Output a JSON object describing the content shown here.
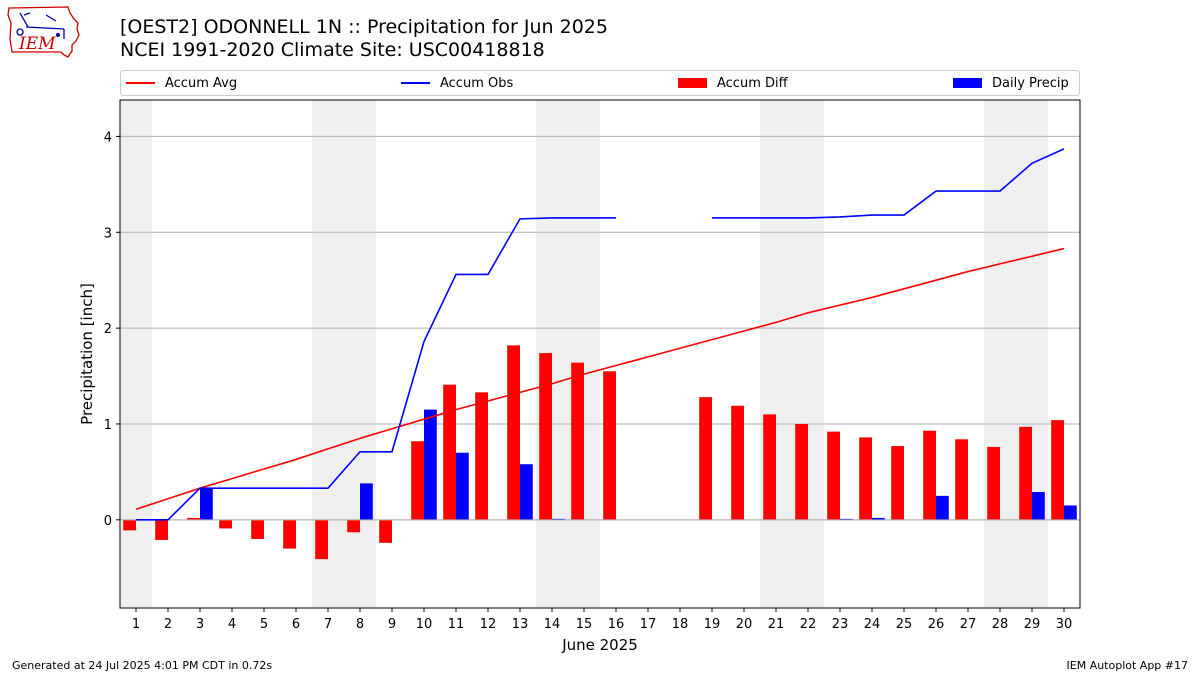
{
  "header": {
    "title_line1": "[OEST2] ODONNELL 1N :: Precipitation for Jun 2025",
    "title_line2": "NCEI 1991-2020 Climate Site: USC00418818"
  },
  "logo": {
    "text": "IEM"
  },
  "footer": {
    "generated": "Generated at 24 Jul 2025 4:01 PM CDT in 0.72s",
    "app": "IEM Autoplot App #17"
  },
  "colors": {
    "avg": "#ff0000",
    "obs": "#0000ff",
    "diff": "#ff0000",
    "daily": "#0000ff",
    "weekend": "#efefef",
    "grid": "#b0b0b0"
  },
  "chart_data": {
    "type": "bar",
    "xlabel": "June 2025",
    "ylabel": "Precipitation [inch]",
    "xlim": [
      0.5,
      30.5
    ],
    "ylim": [
      -0.92,
      4.38
    ],
    "yticks": [
      0,
      1,
      2,
      3,
      4
    ],
    "grid": true,
    "legend_placement": "top",
    "legend": {
      "avg": "Accum Avg",
      "obs": "Accum Obs",
      "diff": "Accum Diff",
      "daily": "Daily Precip"
    },
    "days": [
      1,
      2,
      3,
      4,
      5,
      6,
      7,
      8,
      9,
      10,
      11,
      12,
      13,
      14,
      15,
      16,
      17,
      18,
      19,
      20,
      21,
      22,
      23,
      24,
      25,
      26,
      27,
      28,
      29,
      30
    ],
    "weekend_days": [
      1,
      7,
      8,
      14,
      15,
      21,
      22,
      28,
      29
    ],
    "accum_avg": [
      0.11,
      0.22,
      0.33,
      0.43,
      0.53,
      0.63,
      0.74,
      0.85,
      0.95,
      1.05,
      1.15,
      1.24,
      1.33,
      1.42,
      1.52,
      1.61,
      1.7,
      1.79,
      1.88,
      1.97,
      2.06,
      2.16,
      2.24,
      2.32,
      2.41,
      2.5,
      2.59,
      2.67,
      2.75,
      2.83
    ],
    "accum_obs": [
      0.0,
      0.0,
      0.33,
      0.33,
      0.33,
      0.33,
      0.33,
      0.71,
      0.71,
      1.86,
      2.56,
      2.56,
      3.14,
      3.15,
      3.15,
      3.15,
      null,
      null,
      3.15,
      3.15,
      3.15,
      3.15,
      3.16,
      3.18,
      3.18,
      3.43,
      3.43,
      3.43,
      3.72,
      3.87
    ],
    "accum_diff": [
      -0.11,
      -0.21,
      0.02,
      -0.09,
      -0.2,
      -0.3,
      -0.41,
      -0.13,
      -0.24,
      0.82,
      1.41,
      1.33,
      1.82,
      1.74,
      1.64,
      1.55,
      null,
      null,
      1.28,
      1.19,
      1.1,
      1.0,
      0.92,
      0.86,
      0.77,
      0.93,
      0.84,
      0.76,
      0.97,
      1.04
    ],
    "daily_precip": [
      0.0,
      0.0,
      0.33,
      0.0,
      0.0,
      0.0,
      0.0,
      0.38,
      0.0,
      1.15,
      0.7,
      0.0,
      0.58,
      0.01,
      0.0,
      0.0,
      null,
      null,
      0.0,
      0.0,
      0.0,
      0.0,
      0.01,
      0.02,
      0.0,
      0.25,
      0.0,
      0.0,
      0.29,
      0.15
    ]
  }
}
